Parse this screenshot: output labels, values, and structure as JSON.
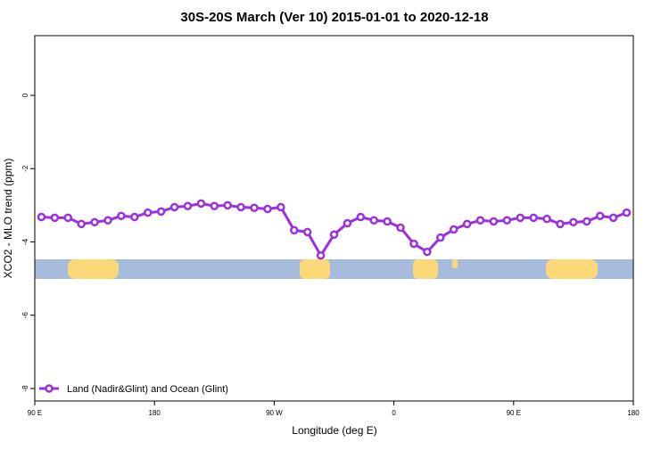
{
  "chart_data": {
    "type": "line",
    "title": "30S-20S March (Ver 10)   2015-01-01 to 2020-12-18",
    "x_label": "Longitude (deg E)",
    "y_label": "XCO2 - MLO trend (ppm)",
    "x": [
      95,
      105,
      115,
      125,
      135,
      145,
      155,
      165,
      175,
      185,
      195,
      205,
      215,
      225,
      235,
      245,
      255,
      265,
      275,
      285,
      295,
      305,
      315,
      325,
      335,
      345,
      355,
      365,
      375,
      385,
      395,
      405,
      415,
      425,
      435,
      445,
      455,
      465,
      475,
      485,
      495,
      505,
      515,
      525,
      535
    ],
    "series": [
      {
        "name": "Land (Nadir&Glint) and Ocean (Glint)",
        "color": "#9b30e0",
        "values": [
          -3.32,
          -3.34,
          -3.34,
          -3.51,
          -3.46,
          -3.41,
          -3.29,
          -3.32,
          -3.2,
          -3.17,
          -3.05,
          -3.02,
          -2.95,
          -3.02,
          -3.0,
          -3.05,
          -3.07,
          -3.1,
          -3.05,
          -3.68,
          -3.73,
          -4.37,
          -3.8,
          -3.49,
          -3.32,
          -3.41,
          -3.44,
          -3.61,
          -4.05,
          -4.27,
          -3.88,
          -3.66,
          -3.51,
          -3.41,
          -3.44,
          -3.41,
          -3.34,
          -3.34,
          -3.37,
          -3.51,
          -3.46,
          -3.44,
          -3.29,
          -3.34,
          -3.2
        ]
      }
    ],
    "xlim": [
      90,
      540
    ],
    "xticks": [
      {
        "value": 90,
        "label": "90 E"
      },
      180,
      {
        "value": 270,
        "label": "90 W"
      },
      {
        "value": 360,
        "label": "0"
      },
      {
        "value": 450,
        "label": "90 E"
      },
      {
        "value": 540,
        "label": "180"
      }
    ],
    "ylim": [
      -8.34,
      1.63
    ],
    "yticks": [
      0,
      -2,
      -4,
      -6,
      -8
    ],
    "legend": "bottom-left"
  }
}
